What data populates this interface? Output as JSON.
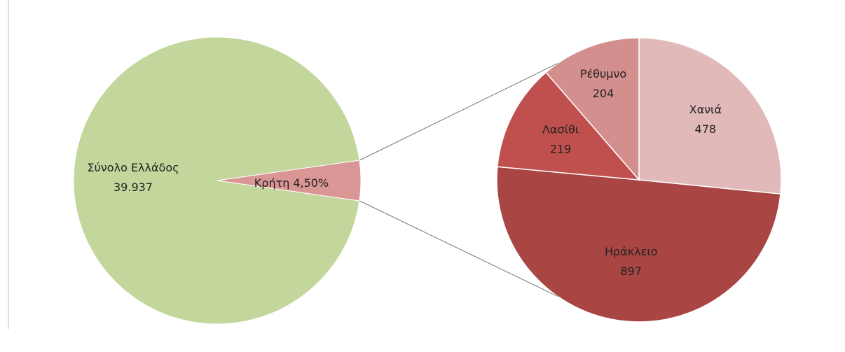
{
  "chart_data": {
    "type": "pie-of-pie",
    "main": {
      "categories": [
        "Σύνολο Ελλάδος",
        "Κρήτη"
      ],
      "total": 39937,
      "total_label": "39.937",
      "share": 4.5,
      "share_label": "4,50%",
      "colors": [
        "#c3d69b",
        "#d99694"
      ]
    },
    "detail": {
      "categories": [
        "Χανιά",
        "Ηράκλειο",
        "Λασίθι",
        "Ρέθυμνο"
      ],
      "values": [
        478,
        897,
        219,
        204
      ],
      "colors": [
        "#e0b9b8",
        "#a94543",
        "#c0504d",
        "#d38f8d"
      ]
    }
  }
}
